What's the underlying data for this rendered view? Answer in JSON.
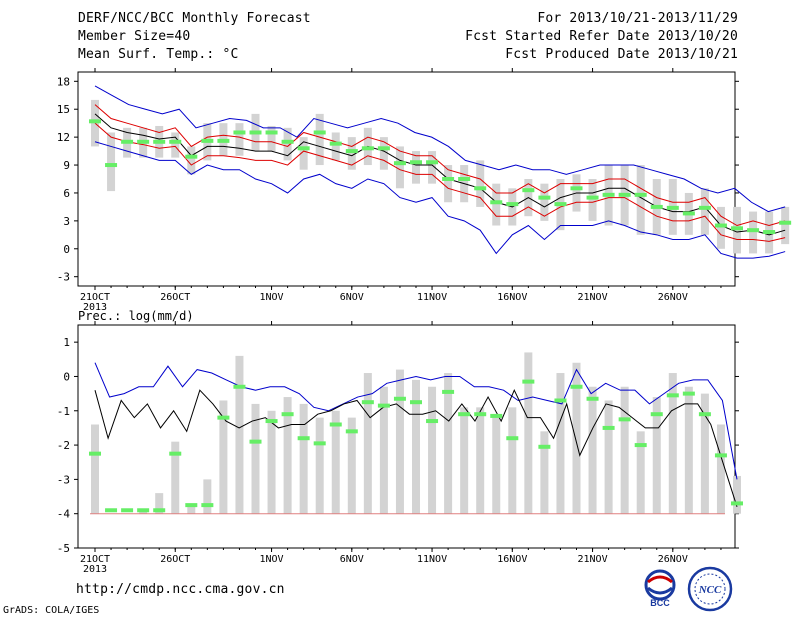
{
  "header": {
    "title": "DERF/NCC/BCC Monthly Forecast",
    "member_size": "Member Size=40",
    "variable": "Mean Surf. Temp.: °C",
    "for_range": "For 2013/10/21-2013/11/29",
    "fcst_started": "Fcst Started Refer Date 2013/10/20",
    "fcst_produced": "Fcst Produced Date 2013/10/21"
  },
  "footer": {
    "url": "http://cmdp.ncc.cma.gov.cn",
    "grads": "GrADS: COLA/IGES",
    "logo_left_text": "BCC",
    "logo_right_text": "NCC"
  },
  "colors": {
    "box": "#d3d3d3",
    "median": "#66ee66",
    "envelope": "#0000cc",
    "mean": "#000000",
    "std": "#dd0000"
  },
  "chart_data": [
    {
      "type": "box-time-series",
      "ylabel": "",
      "ylim": [
        -4,
        19
      ],
      "yticks": [
        -3,
        0,
        3,
        6,
        9,
        12,
        15,
        18
      ],
      "x_ticks": [
        {
          "day": 0,
          "label": "21OCT",
          "sub": "2013"
        },
        {
          "day": 5,
          "label": "26OCT"
        },
        {
          "day": 11,
          "label": "1NOV"
        },
        {
          "day": 16,
          "label": "6NOV"
        },
        {
          "day": 21,
          "label": "11NOV"
        },
        {
          "day": 26,
          "label": "16NOV"
        },
        {
          "day": 31,
          "label": "21NOV"
        },
        {
          "day": 36,
          "label": "26NOV"
        }
      ],
      "days": 40,
      "series": [
        {
          "name": "max",
          "values": [
            17.5,
            16.5,
            15.5,
            15,
            14.5,
            15,
            13,
            13.5,
            14,
            13.8,
            13,
            13,
            12,
            14,
            13.5,
            13,
            13.5,
            14,
            13.5,
            12.5,
            12,
            11,
            9.5,
            9,
            8.5,
            9,
            8.5,
            8.5,
            8,
            8.5,
            9,
            9,
            9,
            8.5,
            8,
            7.5,
            6.5,
            6,
            6.5,
            5,
            4,
            4.5
          ]
        },
        {
          "name": "mean_plus_std",
          "values": [
            15.5,
            14,
            13.5,
            13,
            12.5,
            13,
            11,
            12,
            12.2,
            12,
            11.5,
            11.5,
            11,
            12.5,
            12,
            11.5,
            11,
            12,
            11.5,
            10.5,
            10,
            10,
            8.5,
            8,
            7.5,
            6,
            6,
            7,
            6,
            7,
            7,
            7,
            7.5,
            7.5,
            6.5,
            5.5,
            5,
            5,
            5.5,
            3.5,
            2.5,
            3,
            2.5,
            3
          ]
        },
        {
          "name": "mean",
          "values": [
            14.5,
            13,
            12.5,
            12.2,
            11.8,
            12,
            10,
            11,
            11,
            10.8,
            10.5,
            10.5,
            10,
            11.5,
            11,
            10.5,
            10,
            11,
            10.5,
            9.5,
            9,
            9,
            7.5,
            7,
            6.5,
            5,
            4.5,
            5.5,
            4.5,
            5.5,
            6,
            6,
            6.5,
            6.5,
            5.5,
            4.5,
            4,
            4,
            4.5,
            2.5,
            1.8,
            2,
            1.5,
            2
          ]
        },
        {
          "name": "mean_minus_std",
          "values": [
            13.5,
            12,
            11.5,
            11.2,
            10.8,
            11,
            9,
            10,
            10,
            9.8,
            9.5,
            9.5,
            9,
            10.5,
            10,
            9.5,
            9,
            10,
            9.5,
            8.5,
            8,
            8,
            6.5,
            6,
            5.5,
            3.5,
            3.5,
            4.5,
            3.5,
            4.5,
            5,
            5,
            5.5,
            5.5,
            4.5,
            3.5,
            3,
            3,
            3.5,
            1.5,
            1,
            1,
            0.8,
            1.2
          ]
        },
        {
          "name": "min",
          "values": [
            11.5,
            11,
            10.5,
            10,
            9.5,
            9.5,
            8,
            9,
            8.5,
            8.5,
            7.5,
            7,
            6,
            7.5,
            8,
            7,
            6.5,
            7.5,
            7,
            5.5,
            5,
            5.5,
            3.5,
            3,
            2,
            -0.5,
            1.5,
            2.5,
            1,
            2.5,
            2.5,
            2.5,
            3,
            2.5,
            1.8,
            1.5,
            1,
            1,
            1.5,
            -0.5,
            -1,
            -1,
            -0.8,
            -0.3
          ]
        }
      ],
      "boxes": [
        {
          "lo": 11,
          "hi": 16,
          "med": 13.7
        },
        {
          "lo": 6.2,
          "hi": 12.5,
          "med": 9
        },
        {
          "lo": 9.8,
          "hi": 13,
          "med": 11.5
        },
        {
          "lo": 9.8,
          "hi": 13,
          "med": 11.5
        },
        {
          "lo": 9.8,
          "hi": 13.2,
          "med": 11.5
        },
        {
          "lo": 9.8,
          "hi": 12.5,
          "med": 11.5
        },
        {
          "lo": 8,
          "hi": 11,
          "med": 9.9
        },
        {
          "lo": 9.5,
          "hi": 13.5,
          "med": 11.6
        },
        {
          "lo": 10,
          "hi": 13.5,
          "med": 11.6
        },
        {
          "lo": 10,
          "hi": 13.5,
          "med": 12.5
        },
        {
          "lo": 10.5,
          "hi": 14.5,
          "med": 12.5
        },
        {
          "lo": 10.5,
          "hi": 13.2,
          "med": 12.5
        },
        {
          "lo": 9.5,
          "hi": 13,
          "med": 11.5
        },
        {
          "lo": 8.5,
          "hi": 12,
          "med": 10.8
        },
        {
          "lo": 9,
          "hi": 14.5,
          "med": 12.5
        },
        {
          "lo": 9.5,
          "hi": 12.5,
          "med": 11.3
        },
        {
          "lo": 8.5,
          "hi": 12,
          "med": 10.5
        },
        {
          "lo": 9,
          "hi": 13,
          "med": 10.8
        },
        {
          "lo": 8.5,
          "hi": 12,
          "med": 10.8
        },
        {
          "lo": 6.5,
          "hi": 11,
          "med": 9.2
        },
        {
          "lo": 7,
          "hi": 10.5,
          "med": 9.3
        },
        {
          "lo": 7,
          "hi": 10.5,
          "med": 9.3
        },
        {
          "lo": 5,
          "hi": 9,
          "med": 7.5
        },
        {
          "lo": 5,
          "hi": 9,
          "med": 7.5
        },
        {
          "lo": 4.5,
          "hi": 9.5,
          "med": 6.5
        },
        {
          "lo": 2.5,
          "hi": 7,
          "med": 5
        },
        {
          "lo": 2.5,
          "hi": 6.5,
          "med": 4.8
        },
        {
          "lo": 3.5,
          "hi": 7.5,
          "med": 6.3
        },
        {
          "lo": 3,
          "hi": 7,
          "med": 5.5
        },
        {
          "lo": 2,
          "hi": 7.5,
          "med": 4.8
        },
        {
          "lo": 4,
          "hi": 8,
          "med": 6.5
        },
        {
          "lo": 3,
          "hi": 7.5,
          "med": 5.5
        },
        {
          "lo": 2.5,
          "hi": 9,
          "med": 5.8
        },
        {
          "lo": 2.5,
          "hi": 9,
          "med": 5.8
        },
        {
          "lo": 1.5,
          "hi": 9,
          "med": 5.8
        },
        {
          "lo": 1.5,
          "hi": 7.5,
          "med": 4.5
        },
        {
          "lo": 1.5,
          "hi": 7.5,
          "med": 4.4
        },
        {
          "lo": 1.5,
          "hi": 6,
          "med": 3.8
        },
        {
          "lo": 1.5,
          "hi": 6.5,
          "med": 4.4
        },
        {
          "lo": 0,
          "hi": 4.5,
          "med": 2.5
        },
        {
          "lo": -0.5,
          "hi": 4.5,
          "med": 2.2
        },
        {
          "lo": -0.5,
          "hi": 4,
          "med": 2
        },
        {
          "lo": -0.5,
          "hi": 4,
          "med": 1.8
        },
        {
          "lo": 0.5,
          "hi": 4.5,
          "med": 2.8
        }
      ]
    },
    {
      "type": "box-time-series",
      "ylabel": "Prec.: log(mm/d)",
      "ylim": [
        -5,
        1.5
      ],
      "yticks": [
        -5,
        -4,
        -3,
        -2,
        -1,
        0,
        1
      ],
      "x_ticks": [
        {
          "day": 0,
          "label": "21OCT",
          "sub": "2013"
        },
        {
          "day": 5,
          "label": "26OCT"
        },
        {
          "day": 11,
          "label": "1NOV"
        },
        {
          "day": 16,
          "label": "6NOV"
        },
        {
          "day": 21,
          "label": "11NOV"
        },
        {
          "day": 26,
          "label": "16NOV"
        },
        {
          "day": 31,
          "label": "21NOV"
        },
        {
          "day": 36,
          "label": "26NOV"
        }
      ],
      "floor_value": -4,
      "series": [
        {
          "name": "max",
          "values": [
            0.4,
            -0.6,
            -0.5,
            -0.3,
            -0.3,
            0.3,
            -0.3,
            0.2,
            0.1,
            -0.1,
            -0.3,
            -0.4,
            -0.3,
            -0.3,
            -0.5,
            -0.9,
            -1,
            -0.8,
            -0.6,
            -0.5,
            -0.2,
            -0.1,
            0,
            -0.1,
            0,
            0,
            -0.3,
            -0.3,
            -0.4,
            -0.7,
            -0.6,
            -0.7,
            -0.8,
            0.2,
            -0.5,
            -0.2,
            -0.4,
            -0.4,
            -0.8,
            -0.5,
            -0.2,
            -0.1,
            -0.1,
            -0.7,
            -3
          ]
        },
        {
          "name": "mean",
          "values": [
            -0.4,
            -1.8,
            -0.7,
            -1.2,
            -0.8,
            -1.5,
            -1,
            -1.6,
            -0.4,
            -0.8,
            -1.3,
            -1.5,
            -1.3,
            -1.2,
            -1.5,
            -1.4,
            -1.4,
            -1.1,
            -1,
            -0.8,
            -0.7,
            -1.2,
            -0.9,
            -0.8,
            -1.1,
            -1.1,
            -1,
            -1.3,
            -0.8,
            -1.3,
            -0.6,
            -1.3,
            -0.4,
            -1.2,
            -1.2,
            -1.8,
            -0.8,
            -2.3,
            -1.5,
            -0.8,
            -0.9,
            -1.2,
            -1.5,
            -1.5,
            -1,
            -0.8,
            -0.8,
            -1.4,
            -2.6,
            -3.8
          ]
        }
      ],
      "boxes": [
        {
          "lo": -4,
          "hi": -1.4,
          "med": -2.25
        },
        {
          "lo": -4,
          "hi": -4,
          "med": -3.9
        },
        {
          "lo": -4,
          "hi": -4,
          "med": -3.9
        },
        {
          "lo": -4,
          "hi": -3.9,
          "med": -3.9
        },
        {
          "lo": -4,
          "hi": -3.4,
          "med": -3.9
        },
        {
          "lo": -4,
          "hi": -1.9,
          "med": -2.25
        },
        {
          "lo": -4,
          "hi": -3.8,
          "med": -3.75
        },
        {
          "lo": -4,
          "hi": -3.0,
          "med": -3.75
        },
        {
          "lo": -4,
          "hi": -0.7,
          "med": -1.2
        },
        {
          "lo": -4,
          "hi": 0.6,
          "med": -0.3
        },
        {
          "lo": -4,
          "hi": -0.8,
          "med": -1.9
        },
        {
          "lo": -4,
          "hi": -1,
          "med": -1.3
        },
        {
          "lo": -4,
          "hi": -0.6,
          "med": -1.1
        },
        {
          "lo": -4,
          "hi": -0.8,
          "med": -1.8
        },
        {
          "lo": -4,
          "hi": -1.2,
          "med": -1.95
        },
        {
          "lo": -4,
          "hi": -1,
          "med": -1.4
        },
        {
          "lo": -4,
          "hi": -1.2,
          "med": -1.6
        },
        {
          "lo": -4,
          "hi": 0.1,
          "med": -0.75
        },
        {
          "lo": -4,
          "hi": -0.3,
          "med": -0.85
        },
        {
          "lo": -4,
          "hi": 0.2,
          "med": -0.65
        },
        {
          "lo": -4,
          "hi": -0.1,
          "med": -0.75
        },
        {
          "lo": -4,
          "hi": -0.3,
          "med": -1.3
        },
        {
          "lo": -4,
          "hi": 0.1,
          "med": -0.45
        },
        {
          "lo": -4,
          "hi": -0.9,
          "med": -1.1
        },
        {
          "lo": -4,
          "hi": -0.9,
          "med": -1.1
        },
        {
          "lo": -4,
          "hi": -1.1,
          "med": -1.15
        },
        {
          "lo": -4,
          "hi": -0.9,
          "med": -1.8
        },
        {
          "lo": -4,
          "hi": 0.7,
          "med": -0.15
        },
        {
          "lo": -4,
          "hi": -1.6,
          "med": -2.05
        },
        {
          "lo": -4,
          "hi": 0.1,
          "med": -0.7
        },
        {
          "lo": -4,
          "hi": 0.4,
          "med": -0.3
        },
        {
          "lo": -4,
          "hi": -0.3,
          "med": -0.65
        },
        {
          "lo": -4,
          "hi": -0.7,
          "med": -1.5
        },
        {
          "lo": -4,
          "hi": -0.3,
          "med": -1.25
        },
        {
          "lo": -4,
          "hi": -1.6,
          "med": -2
        },
        {
          "lo": -4,
          "hi": -0.6,
          "med": -1.1
        },
        {
          "lo": -4,
          "hi": 0.1,
          "med": -0.55
        },
        {
          "lo": -4,
          "hi": -0.3,
          "med": -0.5
        },
        {
          "lo": -4,
          "hi": -0.5,
          "med": -1.1
        },
        {
          "lo": -4,
          "hi": -1.4,
          "med": -2.3
        },
        {
          "lo": -4,
          "hi": -2.9,
          "med": -3.7
        }
      ]
    }
  ]
}
